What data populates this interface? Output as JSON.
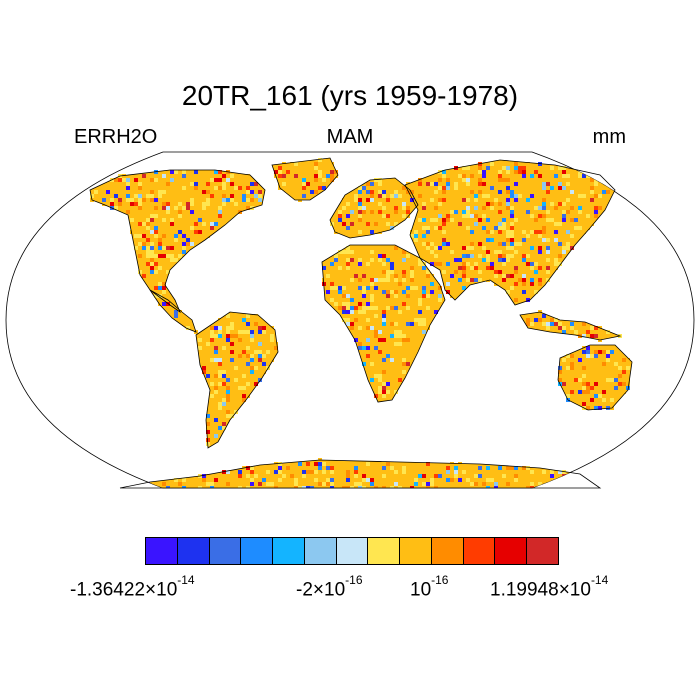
{
  "title": "20TR_161 (yrs 1959-1978)",
  "variable": "ERRH2O",
  "season": "MAM",
  "units": "mm",
  "palette": [
    "#3a14ff",
    "#1e32f0",
    "#3a6ee6",
    "#1e8cff",
    "#14b4ff",
    "#8cc8f0",
    "#c8e6f8",
    "#ffe650",
    "#ffbe14",
    "#ff8c00",
    "#ff3c00",
    "#e60000",
    "#d22828"
  ],
  "ocean_color": "#ffffff",
  "coast_color": "#000000",
  "colorbar_labels": [
    {
      "mantissa": "-1.36422",
      "times": "×",
      "base": "10",
      "exp": "-14"
    },
    {
      "mantissa": "-2",
      "times": "×",
      "base": "10",
      "exp": "-16"
    },
    {
      "mantissa": "",
      "times": "",
      "base": "10",
      "exp": "-16"
    },
    {
      "mantissa": "1.19948",
      "times": "×",
      "base": "10",
      "exp": "-14"
    }
  ]
}
